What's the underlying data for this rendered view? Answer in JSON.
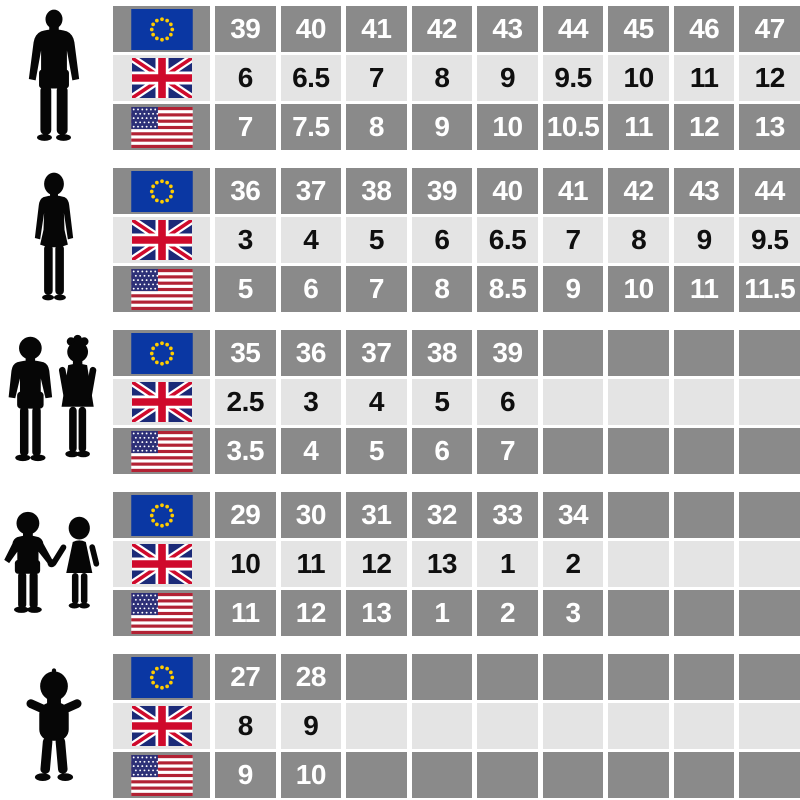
{
  "palette": {
    "page_bg": "#ffffff",
    "row_dark_bg": "#8a8a8a",
    "row_light_bg": "#e4e4e4",
    "text_on_dark": "#ffffff",
    "text_on_light": "#0f0f0f",
    "silhouette_color": "#060606",
    "eu_flag_blue": "#0a37a3",
    "eu_flag_stars": "#ffcc00",
    "uk_flag_blue": "#1b2a78",
    "uk_flag_red": "#cf0a2c",
    "us_flag_red": "#b22234",
    "us_flag_blue": "#2d3077",
    "flag_white": "#ffffff"
  },
  "table": {
    "columns_per_row": 9,
    "row_order": [
      "EU",
      "UK",
      "US"
    ]
  },
  "chart_data": {
    "type": "table",
    "sections": [
      {
        "group": "men",
        "figure": "man-silhouette",
        "rows": [
          {
            "region": "EU",
            "flag": "eu-flag-icon",
            "values": [
              "39",
              "40",
              "41",
              "42",
              "43",
              "44",
              "45",
              "46",
              "47"
            ]
          },
          {
            "region": "UK",
            "flag": "uk-flag-icon",
            "values": [
              "6",
              "6.5",
              "7",
              "8",
              "9",
              "9.5",
              "10",
              "11",
              "12"
            ]
          },
          {
            "region": "US",
            "flag": "us-flag-icon",
            "values": [
              "7",
              "7.5",
              "8",
              "9",
              "10",
              "10.5",
              "11",
              "12",
              "13"
            ]
          }
        ]
      },
      {
        "group": "women",
        "figure": "woman-silhouette",
        "rows": [
          {
            "region": "EU",
            "flag": "eu-flag-icon",
            "values": [
              "36",
              "37",
              "38",
              "39",
              "40",
              "41",
              "42",
              "43",
              "44"
            ]
          },
          {
            "region": "UK",
            "flag": "uk-flag-icon",
            "values": [
              "3",
              "4",
              "5",
              "6",
              "6.5",
              "7",
              "8",
              "9",
              "9.5"
            ]
          },
          {
            "region": "US",
            "flag": "us-flag-icon",
            "values": [
              "5",
              "6",
              "7",
              "8",
              "8.5",
              "9",
              "10",
              "11",
              "11.5"
            ]
          }
        ]
      },
      {
        "group": "older-kids",
        "figure": "boy-and-girl-silhouette",
        "rows": [
          {
            "region": "EU",
            "flag": "eu-flag-icon",
            "values": [
              "35",
              "36",
              "37",
              "38",
              "39"
            ]
          },
          {
            "region": "UK",
            "flag": "uk-flag-icon",
            "values": [
              "2.5",
              "3",
              "4",
              "5",
              "6"
            ]
          },
          {
            "region": "US",
            "flag": "us-flag-icon",
            "values": [
              "3.5",
              "4",
              "5",
              "6",
              "7"
            ]
          }
        ]
      },
      {
        "group": "younger-kids",
        "figure": "children-holding-hands-silhouette",
        "rows": [
          {
            "region": "EU",
            "flag": "eu-flag-icon",
            "values": [
              "29",
              "30",
              "31",
              "32",
              "33",
              "34"
            ]
          },
          {
            "region": "UK",
            "flag": "uk-flag-icon",
            "values": [
              "10",
              "11",
              "12",
              "13",
              "1",
              "2"
            ]
          },
          {
            "region": "US",
            "flag": "us-flag-icon",
            "values": [
              "11",
              "12",
              "13",
              "1",
              "2",
              "3"
            ]
          }
        ]
      },
      {
        "group": "toddlers",
        "figure": "toddler-silhouette",
        "rows": [
          {
            "region": "EU",
            "flag": "eu-flag-icon",
            "values": [
              "27",
              "28"
            ]
          },
          {
            "region": "UK",
            "flag": "uk-flag-icon",
            "values": [
              "8",
              "9"
            ]
          },
          {
            "region": "US",
            "flag": "us-flag-icon",
            "values": [
              "9",
              "10"
            ]
          }
        ]
      }
    ]
  }
}
